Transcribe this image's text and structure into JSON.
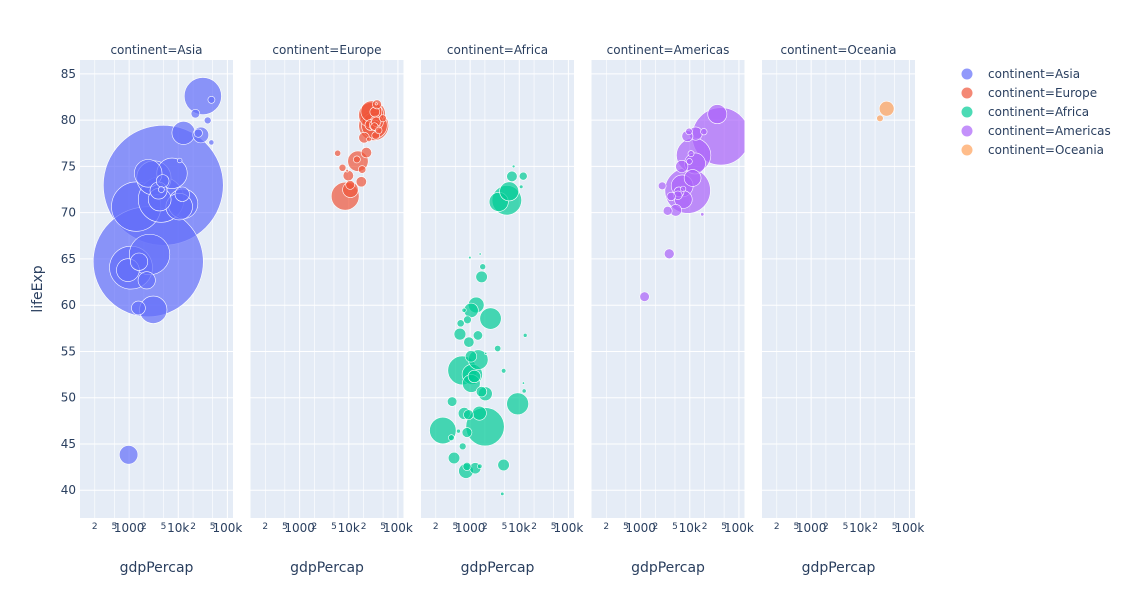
{
  "chart_data": {
    "type": "scatter",
    "variant": "bubble-facets",
    "xlabel": "gdpPercap",
    "ylabel": "lifeExp",
    "xscale": "log",
    "xlim": [
      100,
      130000
    ],
    "ylim": [
      37,
      86.5
    ],
    "yticks": [
      40,
      45,
      50,
      55,
      60,
      65,
      70,
      75,
      80,
      85
    ],
    "xticks": [
      {
        "value": 200,
        "label": "2",
        "small": true
      },
      {
        "value": 500,
        "label": "5",
        "small": true
      },
      {
        "value": 1000,
        "label": "1000",
        "small": false
      },
      {
        "value": 2000,
        "label": "2",
        "small": true
      },
      {
        "value": 5000,
        "label": "5",
        "small": true
      },
      {
        "value": 10000,
        "label": "10k",
        "small": false
      },
      {
        "value": 20000,
        "label": "2",
        "small": true
      },
      {
        "value": 50000,
        "label": "5",
        "small": true
      },
      {
        "value": 100000,
        "label": "100k",
        "small": false
      }
    ],
    "grid": true,
    "legend_position": "right",
    "colors": {
      "Asia": "#636efa",
      "Europe": "#ef553b",
      "Africa": "#00cc96",
      "Americas": "#ab63fa",
      "Oceania": "#ffa15a"
    },
    "facets": [
      {
        "title": "continent=Asia",
        "continent": "Asia",
        "points": [
          [
            4959,
            72.96,
            1319
          ],
          [
            2452,
            64.7,
            1110
          ],
          [
            1391,
            70.65,
            223
          ],
          [
            4471,
            71.42,
            190
          ],
          [
            1091,
            64.06,
            169
          ],
          [
            31656,
            82.6,
            127
          ],
          [
            3190,
            73.75,
            108
          ],
          [
            2605,
            65.48,
            150
          ],
          [
            12452,
            70.96,
            81.2
          ],
          [
            10461,
            70.65,
            65
          ],
          [
            7458,
            74.25,
            85
          ],
          [
            2442,
            74.25,
            70.3
          ],
          [
            975,
            43.83,
            31.9
          ],
          [
            12779,
            78.62,
            49
          ],
          [
            944,
            63.79,
            47.8
          ],
          [
            1545,
            59.7,
            17.7
          ],
          [
            4185,
            71.42,
            47.8
          ],
          [
            3970,
            72.39,
            26.8
          ],
          [
            2280,
            62.69,
            27.5
          ],
          [
            1593,
            64.7,
            27.7
          ],
          [
            28718,
            78.4,
            23
          ],
          [
            4811,
            73.42,
            15
          ],
          [
            47306,
            82.2,
            4.5
          ],
          [
            3098,
            59.5,
            69
          ],
          [
            25523,
            78.6,
            6.4
          ],
          [
            39724,
            79.97,
            4.5
          ],
          [
            22316,
            80.7,
            7.1
          ],
          [
            4519,
            72.5,
            3.3
          ],
          [
            12057,
            71.99,
            19.3
          ],
          [
            47143,
            77.59,
            2.5
          ],
          [
            10707,
            75.64,
            2.0
          ]
        ]
      },
      {
        "title": "continent=Europe",
        "continent": "Europe",
        "points": [
          [
            5937,
            76.42,
            3.6
          ],
          [
            36126,
            79.83,
            8.2
          ],
          [
            33693,
            79.44,
            10.4
          ],
          [
            7446,
            74.85,
            4.6
          ],
          [
            10681,
            73.0,
            7.3
          ],
          [
            14619,
            75.75,
            4.5
          ],
          [
            22833,
            76.49,
            10.2
          ],
          [
            35278,
            78.33,
            5.5
          ],
          [
            33207,
            79.31,
            5.2
          ],
          [
            30470,
            80.66,
            61.1
          ],
          [
            32170,
            79.41,
            82.4
          ],
          [
            27538,
            79.48,
            10.7
          ],
          [
            18009,
            73.34,
            9.95
          ],
          [
            36181,
            81.76,
            0.3
          ],
          [
            40676,
            78.89,
            4.1
          ],
          [
            28570,
            80.55,
            58.1
          ],
          [
            9254,
            74.54,
            0.7
          ],
          [
            36798,
            79.76,
            16.6
          ],
          [
            49357,
            80.2,
            4.6
          ],
          [
            15390,
            75.56,
            38.5
          ],
          [
            20510,
            78.1,
            10.6
          ],
          [
            10808,
            72.48,
            22.3
          ],
          [
            9787,
            74.0,
            10.2
          ],
          [
            18678,
            74.66,
            5.4
          ],
          [
            25768,
            77.93,
            2.0
          ],
          [
            28821,
            80.94,
            40.4
          ],
          [
            33860,
            80.88,
            9.0
          ],
          [
            37506,
            81.7,
            7.6
          ],
          [
            8458,
            71.78,
            71.2
          ],
          [
            33203,
            79.43,
            60.8
          ]
        ]
      },
      {
        "title": "continent=Africa",
        "continent": "Africa",
        "points": [
          [
            6223,
            72.3,
            33.3
          ],
          [
            4797,
            42.73,
            12.4
          ],
          [
            1441,
            56.73,
            8.1
          ],
          [
            12570,
            50.73,
            1.6
          ],
          [
            1217,
            52.3,
            14.3
          ],
          [
            430,
            49.58,
            8.4
          ],
          [
            2042,
            50.43,
            17.7
          ],
          [
            706,
            44.74,
            4.4
          ],
          [
            1704,
            50.65,
            10.2
          ],
          [
            986,
            65.15,
            0.7
          ],
          [
            278,
            46.46,
            64.6
          ],
          [
            3633,
            55.32,
            3.8
          ],
          [
            1544,
            48.33,
            18.0
          ],
          [
            2082,
            54.79,
            0.5
          ],
          [
            5581,
            71.34,
            80.3
          ],
          [
            12154,
            51.58,
            0.55
          ],
          [
            641,
            58.04,
            4.9
          ],
          [
            691,
            52.95,
            76.5
          ],
          [
            13206,
            56.74,
            1.45
          ],
          [
            753,
            59.45,
            1.7
          ],
          [
            1328,
            60.02,
            22.9
          ],
          [
            943,
            56.01,
            9.9
          ],
          [
            579,
            46.39,
            1.5
          ],
          [
            1463,
            54.11,
            35.6
          ],
          [
            1569,
            42.59,
            2.0
          ],
          [
            415,
            45.68,
            3.2
          ],
          [
            12057,
            73.95,
            6.0
          ],
          [
            1045,
            59.44,
            19.2
          ],
          [
            759,
            48.3,
            13.3
          ],
          [
            1042,
            54.47,
            12.0
          ],
          [
            1803,
            64.16,
            3.3
          ],
          [
            10957,
            72.8,
            1.25
          ],
          [
            3820,
            71.16,
            33.8
          ],
          [
            824,
            42.08,
            19.95
          ],
          [
            4811,
            52.91,
            2.05
          ],
          [
            620,
            56.87,
            12.9
          ],
          [
            2014,
            46.86,
            135.0
          ],
          [
            7670,
            75.0,
            0.8
          ],
          [
            863,
            46.24,
            9.0
          ],
          [
            1598,
            65.53,
            0.2
          ],
          [
            1712,
            63.06,
            12.3
          ],
          [
            862,
            42.57,
            6.1
          ],
          [
            926,
            48.16,
            9.1
          ],
          [
            9270,
            49.34,
            43.99
          ],
          [
            2602,
            58.56,
            42.3
          ],
          [
            4513,
            39.61,
            1.13
          ],
          [
            1107,
            52.52,
            38.1
          ],
          [
            883,
            58.42,
            5.7
          ],
          [
            7093,
            73.92,
            10.3
          ],
          [
            1056,
            51.54,
            29.2
          ],
          [
            1271,
            42.38,
            11.7
          ],
          [
            470,
            43.49,
            12.3
          ]
        ]
      },
      {
        "title": "continent=Americas",
        "continent": "Americas",
        "points": [
          [
            12779,
            75.32,
            40.3
          ],
          [
            3822,
            65.55,
            9.1
          ],
          [
            9066,
            72.39,
            190.0
          ],
          [
            36319,
            80.65,
            33.4
          ],
          [
            13172,
            78.55,
            16.3
          ],
          [
            7007,
            72.89,
            44.2
          ],
          [
            9645,
            78.78,
            4.1
          ],
          [
            8948,
            78.27,
            11.4
          ],
          [
            6025,
            72.24,
            9.3
          ],
          [
            6873,
            74.99,
            13.8
          ],
          [
            5728,
            71.88,
            6.9
          ],
          [
            5186,
            70.26,
            12.6
          ],
          [
            1202,
            60.92,
            8.5
          ],
          [
            3548,
            70.2,
            7.5
          ],
          [
            7321,
            72.57,
            2.8
          ],
          [
            11978,
            76.2,
            108.7
          ],
          [
            2749,
            72.9,
            5.7
          ],
          [
            9809,
            75.54,
            3.2
          ],
          [
            4173,
            71.75,
            6.7
          ],
          [
            7409,
            71.42,
            28.7
          ],
          [
            19329,
            78.75,
            3.9
          ],
          [
            18009,
            69.82,
            1.06
          ],
          [
            42952,
            78.24,
            301.1
          ],
          [
            10611,
            76.38,
            3.4
          ],
          [
            11416,
            73.75,
            26.1
          ]
        ]
      },
      {
        "title": "continent=Oceania",
        "continent": "Oceania",
        "points": [
          [
            34435,
            81.24,
            20.4
          ],
          [
            25185,
            80.2,
            4.1
          ]
        ]
      }
    ]
  },
  "legend": [
    {
      "label": "continent=Asia",
      "color": "#636efa"
    },
    {
      "label": "continent=Europe",
      "color": "#ef553b"
    },
    {
      "label": "continent=Africa",
      "color": "#00cc96"
    },
    {
      "label": "continent=Americas",
      "color": "#ab63fa"
    },
    {
      "label": "continent=Oceania",
      "color": "#ffa15a"
    }
  ]
}
